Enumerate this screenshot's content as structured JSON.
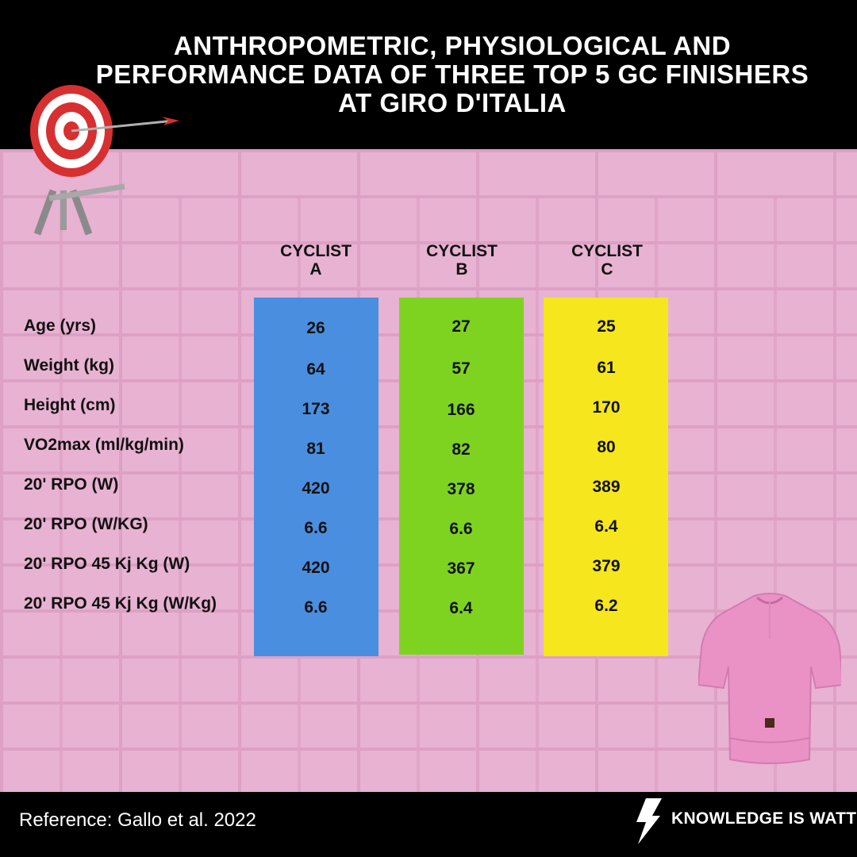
{
  "title": "ANTHROPOMETRIC, PHYSIOLOGICAL AND PERFORMANCE DATA OF THREE TOP 5 GC FINISHERS AT GIRO D'ITALIA",
  "colors": {
    "header_bg": "#000000",
    "wall": "#e8b2d2",
    "cyclist_a": "#4a8ee0",
    "cyclist_b": "#7ed321",
    "cyclist_c": "#f5e61e",
    "jersey": "#ea92c6"
  },
  "icons": [
    "target-icon",
    "jersey-icon",
    "lightning-icon"
  ],
  "chart_data": {
    "type": "table",
    "title": "ANTHROPOMETRIC, PHYSIOLOGICAL AND PERFORMANCE DATA OF THREE TOP 5 GC FINISHERS AT GIRO D'ITALIA",
    "columns": [
      {
        "line1": "CYCLIST",
        "line2": "A",
        "color": "#4a8ee0"
      },
      {
        "line1": "CYCLIST",
        "line2": "B",
        "color": "#7ed321"
      },
      {
        "line1": "CYCLIST",
        "line2": "C",
        "color": "#f5e61e"
      }
    ],
    "rows": [
      {
        "label": "Age (yrs)",
        "values": [
          "26",
          "27",
          "25"
        ]
      },
      {
        "label": "Weight (kg)",
        "values": [
          "64",
          "57",
          "61"
        ]
      },
      {
        "label": "Height (cm)",
        "values": [
          "173",
          "166",
          "170"
        ]
      },
      {
        "label": "VO2max (ml/kg/min)",
        "values": [
          "81",
          "82",
          "80"
        ]
      },
      {
        "label": "20' RPO (W)",
        "values": [
          "420",
          "378",
          "389"
        ]
      },
      {
        "label": "20' RPO (W/KG)",
        "values": [
          "6.6",
          "6.6",
          "6.4"
        ]
      },
      {
        "label": "20' RPO 45 Kj Kg (W)",
        "values": [
          "420",
          "367",
          "379"
        ]
      },
      {
        "label": "20' RPO 45 Kj Kg (W/Kg)",
        "values": [
          "6.6",
          "6.4",
          "6.2"
        ]
      }
    ]
  },
  "footer": {
    "reference": "Reference: Gallo et al. 2022",
    "brand": "KNOWLEDGE IS WATT"
  }
}
